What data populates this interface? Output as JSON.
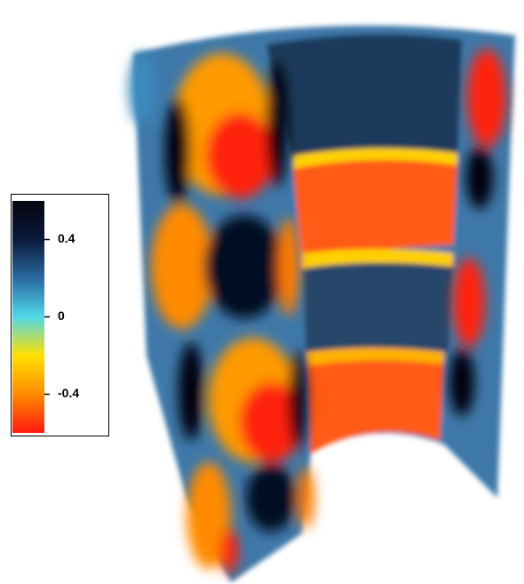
{
  "colorbar": {
    "lim": [
      -0.6,
      0.6
    ],
    "ticks": [
      0.4,
      0,
      -0.4
    ],
    "colors": [
      "#ff1a10",
      "#ff8a00",
      "#ffe000",
      "#4fd8e8",
      "#2a6aa0",
      "#0a1a3a",
      "#050510"
    ]
  }
}
